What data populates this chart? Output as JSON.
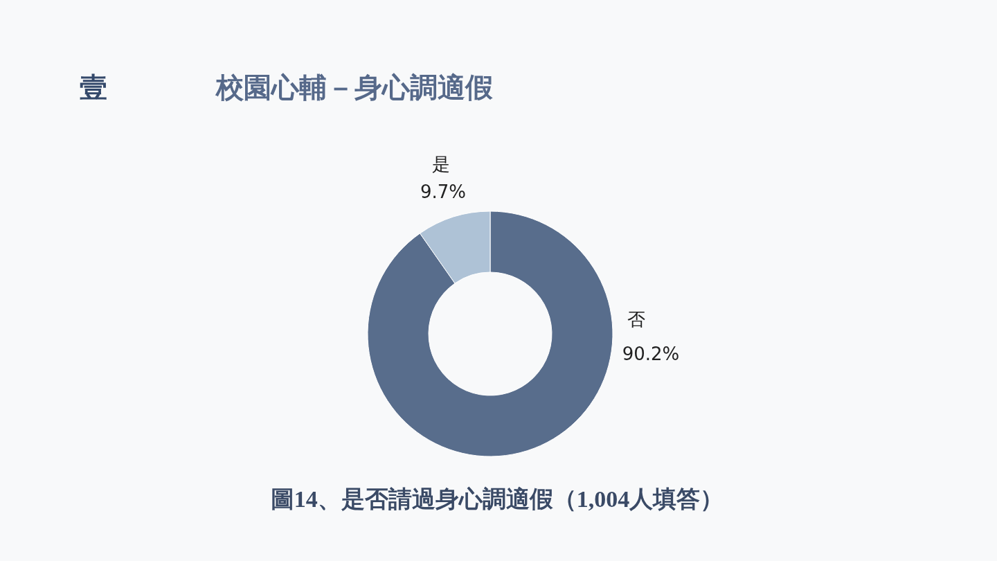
{
  "chart_data": {
    "type": "donut",
    "title": "校園心輔－身心調適假",
    "categories": [
      "否",
      "是"
    ],
    "values": [
      90.2,
      9.7
    ],
    "colors": [
      "#586d8c",
      "#aec2d6"
    ],
    "value_labels": [
      "90.2%",
      "9.7%"
    ],
    "annotations": [
      "壹",
      "圖14、是否請過身心調適假（1,004人填答）"
    ]
  }
}
